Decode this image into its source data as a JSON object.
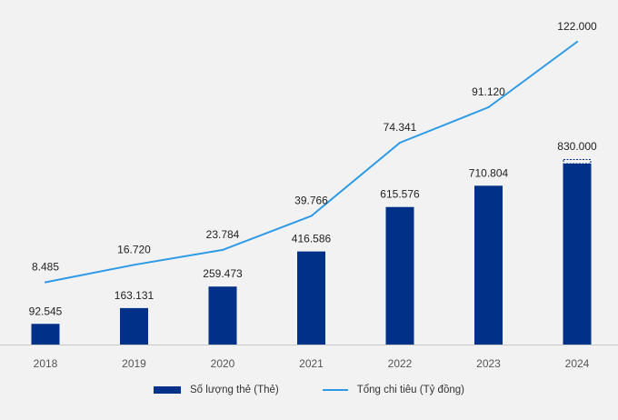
{
  "chart_data": {
    "type": "bar",
    "categories": [
      "2018",
      "2019",
      "2020",
      "2021",
      "2022",
      "2023",
      "2024"
    ],
    "series": [
      {
        "name": "Số lượng thẻ (Thẻ)",
        "type": "bar",
        "values": [
          92545,
          163131,
          259473,
          416586,
          615576,
          710804,
          830000
        ],
        "labels": [
          "92.545",
          "163.131",
          "259.473",
          "416.586",
          "615.576",
          "710.804",
          "830.000"
        ],
        "color": "#003087"
      },
      {
        "name": "Tổng chi tiêu (Tỷ đồng)",
        "type": "line",
        "values": [
          8485,
          16720,
          23784,
          39766,
          74341,
          91120,
          122000
        ],
        "labels": [
          "8.485",
          "16.720",
          "23.784",
          "39.766",
          "74.341",
          "91.120",
          "122.000"
        ],
        "color": "#2e9ae6"
      }
    ],
    "title": "",
    "xlabel": "",
    "ylabel": "",
    "grid": false,
    "legend_position": "bottom-center",
    "last_bar_dashed_top": true
  }
}
